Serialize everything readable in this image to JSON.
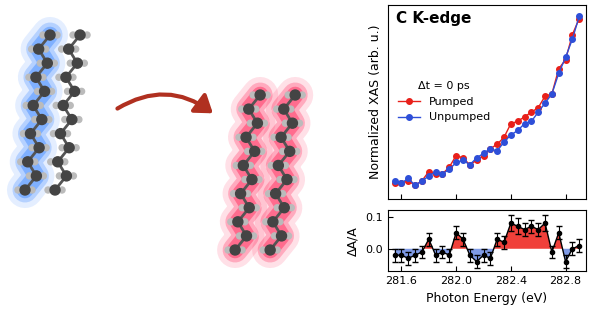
{
  "chart_data": [
    {
      "type": "line",
      "title": "C K-edge",
      "y_label": "Normalized XAS (arb. u.)",
      "legend": "center left",
      "legend_title": "Δt = 0 ps",
      "marker": "o",
      "tick_labels": false,
      "x": [
        281.55,
        281.6,
        281.65,
        281.7,
        281.75,
        281.8,
        281.85,
        281.9,
        281.95,
        282.0,
        282.05,
        282.1,
        282.15,
        282.2,
        282.25,
        282.3,
        282.35,
        282.4,
        282.45,
        282.5,
        282.55,
        282.6,
        282.65,
        282.7,
        282.75,
        282.8,
        282.85,
        282.9
      ],
      "series": [
        {
          "name": "Pumped",
          "color": "#e8201a",
          "values": [
            0.07,
            0.07,
            0.08,
            0.06,
            0.08,
            0.12,
            0.11,
            0.11,
            0.14,
            0.19,
            0.18,
            0.15,
            0.17,
            0.19,
            0.22,
            0.24,
            0.27,
            0.33,
            0.34,
            0.36,
            0.38,
            0.4,
            0.45,
            0.46,
            0.57,
            0.61,
            0.72,
            0.79
          ]
        },
        {
          "name": "Unpumped",
          "color": "#2e4fd8",
          "values": [
            0.08,
            0.07,
            0.09,
            0.06,
            0.08,
            0.1,
            0.12,
            0.11,
            0.13,
            0.16,
            0.17,
            0.15,
            0.18,
            0.2,
            0.22,
            0.21,
            0.25,
            0.28,
            0.3,
            0.33,
            0.34,
            0.38,
            0.42,
            0.46,
            0.55,
            0.62,
            0.7,
            0.8
          ]
        }
      ],
      "xlim": [
        281.5,
        282.95
      ],
      "xticks": [
        281.6,
        282.0,
        282.4,
        282.8
      ],
      "ylim": [
        0,
        0.85
      ],
      "yticks": []
    },
    {
      "type": "line",
      "y_label": "ΔA/A",
      "x_label": "Photon Energy (eV)",
      "marker": "o",
      "color": "#000000",
      "x": [
        281.55,
        281.6,
        281.65,
        281.7,
        281.75,
        281.8,
        281.85,
        281.9,
        281.95,
        282.0,
        282.05,
        282.1,
        282.15,
        282.2,
        282.25,
        282.3,
        282.35,
        282.4,
        282.45,
        282.5,
        282.55,
        282.6,
        282.65,
        282.7,
        282.75,
        282.8,
        282.85,
        282.9
      ],
      "values": [
        -0.02,
        -0.02,
        -0.03,
        -0.02,
        -0.01,
        0.03,
        -0.02,
        -0.01,
        -0.02,
        0.05,
        0.03,
        -0.02,
        -0.04,
        -0.02,
        -0.03,
        0.03,
        0.02,
        0.08,
        0.07,
        0.06,
        0.07,
        0.06,
        0.08,
        -0.01,
        0.05,
        -0.04,
        0.0,
        0.01
      ],
      "errors": [
        0.02,
        0.02,
        0.02,
        0.02,
        0.02,
        0.02,
        0.02,
        0.02,
        0.02,
        0.02,
        0.02,
        0.02,
        0.02,
        0.02,
        0.02,
        0.02,
        0.02,
        0.025,
        0.025,
        0.02,
        0.02,
        0.02,
        0.025,
        0.02,
        0.02,
        0.02,
        0.02,
        0.02
      ],
      "xlim": [
        281.5,
        282.95
      ],
      "xticks": [
        281.6,
        282.0,
        282.4,
        282.8
      ],
      "ylim": [
        -0.07,
        0.12
      ],
      "yticks": [
        {
          "value": 0,
          "label": "0.0"
        },
        0.1
      ]
    }
  ]
}
